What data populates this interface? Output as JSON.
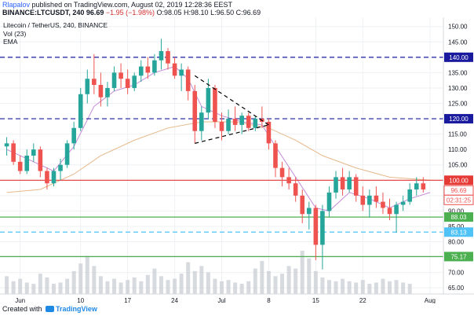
{
  "header": {
    "author": "Rlapalov",
    "published_text": "published on TradingView.com, August 02, 2019 12:28:36 EEST",
    "symbol": "BINANCE:LTCUSDT, 240",
    "price": "96.69",
    "change": "−1.95 (−1.98%)",
    "ohlc": {
      "o_label": "O:",
      "o": "98.05",
      "h_label": "H:",
      "h": "98.10",
      "l_label": "L:",
      "l": "96.50",
      "c_label": "C:",
      "c": "96.69"
    }
  },
  "footer": {
    "created_with": "Created with",
    "brand": "TradingView"
  },
  "chart_data": {
    "type": "candlestick",
    "title": "Litecoin / TetherUS, 240, BINANCE",
    "indicators": [
      "Vol (23)",
      "EMA"
    ],
    "y_ticks": [
      150,
      145,
      140,
      135,
      130,
      125,
      120,
      115,
      110,
      105,
      100,
      95,
      90,
      85,
      80,
      75,
      70,
      65
    ],
    "y_tick_labels": [
      "150.00",
      "145.00",
      "140.00",
      "135.00",
      "130.00",
      "125.00",
      "120.00",
      "115.00",
      "110.00",
      "105.00",
      "100.00",
      "95.00",
      "90.00",
      "85.00",
      "80.00",
      "75.00",
      "70.00",
      "65.00"
    ],
    "ylim": [
      63,
      153
    ],
    "x_ticks": [
      {
        "label": "Jun",
        "day": 0
      },
      {
        "label": "10",
        "day": 9
      },
      {
        "label": "17",
        "day": 16
      },
      {
        "label": "24",
        "day": 23
      },
      {
        "label": "Jul",
        "day": 30
      },
      {
        "label": "8",
        "day": 37
      },
      {
        "label": "15",
        "day": 44
      },
      {
        "label": "22",
        "day": 51
      },
      {
        "label": "Aug",
        "day": 61
      }
    ],
    "xlim": [
      -3,
      63
    ],
    "ohlc": [
      {
        "day": -2,
        "o": 111,
        "h": 114,
        "l": 108,
        "c": 112
      },
      {
        "day": -1,
        "o": 112,
        "h": 113,
        "l": 105,
        "c": 106
      },
      {
        "day": 0,
        "o": 106,
        "h": 108,
        "l": 102,
        "c": 103
      },
      {
        "day": 1,
        "o": 103,
        "h": 110,
        "l": 102,
        "c": 108
      },
      {
        "day": 2,
        "o": 108,
        "h": 112,
        "l": 106,
        "c": 110
      },
      {
        "day": 3,
        "o": 110,
        "h": 111,
        "l": 101,
        "c": 103
      },
      {
        "day": 4,
        "o": 103,
        "h": 104,
        "l": 97,
        "c": 99
      },
      {
        "day": 5,
        "o": 99,
        "h": 104,
        "l": 98,
        "c": 103
      },
      {
        "day": 6,
        "o": 103,
        "h": 107,
        "l": 100,
        "c": 105
      },
      {
        "day": 7,
        "o": 105,
        "h": 113,
        "l": 104,
        "c": 112
      },
      {
        "day": 8,
        "o": 112,
        "h": 119,
        "l": 110,
        "c": 117
      },
      {
        "day": 9,
        "o": 117,
        "h": 130,
        "l": 116,
        "c": 128
      },
      {
        "day": 10,
        "o": 128,
        "h": 136,
        "l": 125,
        "c": 133
      },
      {
        "day": 11,
        "o": 133,
        "h": 141,
        "l": 128,
        "c": 131
      },
      {
        "day": 12,
        "o": 131,
        "h": 135,
        "l": 124,
        "c": 127
      },
      {
        "day": 13,
        "o": 127,
        "h": 132,
        "l": 124,
        "c": 130
      },
      {
        "day": 14,
        "o": 130,
        "h": 137,
        "l": 129,
        "c": 135
      },
      {
        "day": 15,
        "o": 135,
        "h": 138,
        "l": 130,
        "c": 133
      },
      {
        "day": 16,
        "o": 133,
        "h": 136,
        "l": 128,
        "c": 130
      },
      {
        "day": 17,
        "o": 130,
        "h": 135,
        "l": 129,
        "c": 134
      },
      {
        "day": 18,
        "o": 134,
        "h": 139,
        "l": 132,
        "c": 137
      },
      {
        "day": 19,
        "o": 137,
        "h": 140,
        "l": 133,
        "c": 135
      },
      {
        "day": 20,
        "o": 135,
        "h": 141,
        "l": 134,
        "c": 139
      },
      {
        "day": 21,
        "o": 139,
        "h": 146,
        "l": 136,
        "c": 142
      },
      {
        "day": 22,
        "o": 142,
        "h": 143,
        "l": 136,
        "c": 138
      },
      {
        "day": 23,
        "o": 138,
        "h": 140,
        "l": 133,
        "c": 134
      },
      {
        "day": 24,
        "o": 134,
        "h": 138,
        "l": 129,
        "c": 136
      },
      {
        "day": 25,
        "o": 136,
        "h": 137,
        "l": 126,
        "c": 129
      },
      {
        "day": 26,
        "o": 129,
        "h": 131,
        "l": 112,
        "c": 116
      },
      {
        "day": 27,
        "o": 116,
        "h": 124,
        "l": 113,
        "c": 122
      },
      {
        "day": 28,
        "o": 122,
        "h": 133,
        "l": 120,
        "c": 130
      },
      {
        "day": 29,
        "o": 130,
        "h": 131,
        "l": 117,
        "c": 119
      },
      {
        "day": 30,
        "o": 119,
        "h": 122,
        "l": 113,
        "c": 116
      },
      {
        "day": 31,
        "o": 116,
        "h": 123,
        "l": 115,
        "c": 120
      },
      {
        "day": 32,
        "o": 120,
        "h": 124,
        "l": 116,
        "c": 118
      },
      {
        "day": 33,
        "o": 118,
        "h": 122,
        "l": 115,
        "c": 121
      },
      {
        "day": 34,
        "o": 121,
        "h": 122,
        "l": 116,
        "c": 117
      },
      {
        "day": 35,
        "o": 117,
        "h": 121,
        "l": 116,
        "c": 120
      },
      {
        "day": 36,
        "o": 120,
        "h": 124,
        "l": 117,
        "c": 119
      },
      {
        "day": 37,
        "o": 119,
        "h": 120,
        "l": 110,
        "c": 112
      },
      {
        "day": 38,
        "o": 112,
        "h": 113,
        "l": 101,
        "c": 104
      },
      {
        "day": 39,
        "o": 104,
        "h": 106,
        "l": 98,
        "c": 101
      },
      {
        "day": 40,
        "o": 101,
        "h": 104,
        "l": 97,
        "c": 99
      },
      {
        "day": 41,
        "o": 99,
        "h": 101,
        "l": 93,
        "c": 95
      },
      {
        "day": 42,
        "o": 95,
        "h": 97,
        "l": 86,
        "c": 89
      },
      {
        "day": 43,
        "o": 89,
        "h": 93,
        "l": 84,
        "c": 91
      },
      {
        "day": 44,
        "o": 91,
        "h": 92,
        "l": 74,
        "c": 79
      },
      {
        "day": 45,
        "o": 79,
        "h": 92,
        "l": 71,
        "c": 90
      },
      {
        "day": 46,
        "o": 90,
        "h": 98,
        "l": 88,
        "c": 96
      },
      {
        "day": 47,
        "o": 96,
        "h": 103,
        "l": 94,
        "c": 101
      },
      {
        "day": 48,
        "o": 101,
        "h": 104,
        "l": 95,
        "c": 97
      },
      {
        "day": 49,
        "o": 97,
        "h": 103,
        "l": 96,
        "c": 101
      },
      {
        "day": 50,
        "o": 101,
        "h": 102,
        "l": 93,
        "c": 95
      },
      {
        "day": 51,
        "o": 95,
        "h": 98,
        "l": 90,
        "c": 92
      },
      {
        "day": 52,
        "o": 92,
        "h": 97,
        "l": 88,
        "c": 95
      },
      {
        "day": 53,
        "o": 95,
        "h": 98,
        "l": 91,
        "c": 93
      },
      {
        "day": 54,
        "o": 93,
        "h": 96,
        "l": 89,
        "c": 91
      },
      {
        "day": 55,
        "o": 91,
        "h": 94,
        "l": 87,
        "c": 89
      },
      {
        "day": 56,
        "o": 89,
        "h": 93,
        "l": 83,
        "c": 92
      },
      {
        "day": 57,
        "o": 92,
        "h": 95,
        "l": 90,
        "c": 93
      },
      {
        "day": 58,
        "o": 93,
        "h": 99,
        "l": 92,
        "c": 97
      },
      {
        "day": 59,
        "o": 97,
        "h": 101,
        "l": 95,
        "c": 99
      },
      {
        "day": 60,
        "o": 99,
        "h": 101,
        "l": 96,
        "c": 97
      }
    ],
    "volume": [
      14,
      10,
      12,
      9,
      8,
      16,
      13,
      8,
      9,
      12,
      18,
      24,
      30,
      22,
      14,
      10,
      12,
      9,
      11,
      13,
      10,
      15,
      20,
      14,
      11,
      12,
      16,
      25,
      18,
      22,
      17,
      12,
      10,
      11,
      9,
      8,
      10,
      20,
      26,
      18,
      14,
      16,
      22,
      20,
      34,
      28,
      18,
      13,
      11,
      10,
      12,
      10,
      9,
      11,
      8,
      9,
      12,
      10,
      11,
      9,
      8
    ],
    "ema_fast_label": "EMA fast",
    "ema_fast": [
      {
        "day": -2,
        "v": 110
      },
      {
        "day": 2,
        "v": 106
      },
      {
        "day": 5,
        "v": 103
      },
      {
        "day": 8,
        "v": 111
      },
      {
        "day": 11,
        "v": 124
      },
      {
        "day": 14,
        "v": 129
      },
      {
        "day": 17,
        "v": 131
      },
      {
        "day": 20,
        "v": 135
      },
      {
        "day": 23,
        "v": 137
      },
      {
        "day": 25,
        "v": 133
      },
      {
        "day": 27,
        "v": 124
      },
      {
        "day": 30,
        "v": 121
      },
      {
        "day": 33,
        "v": 119
      },
      {
        "day": 36,
        "v": 118
      },
      {
        "day": 38,
        "v": 111
      },
      {
        "day": 41,
        "v": 101
      },
      {
        "day": 44,
        "v": 91
      },
      {
        "day": 46,
        "v": 90
      },
      {
        "day": 49,
        "v": 96
      },
      {
        "day": 52,
        "v": 94
      },
      {
        "day": 55,
        "v": 91
      },
      {
        "day": 58,
        "v": 94
      },
      {
        "day": 61,
        "v": 96
      }
    ],
    "ema_slow_label": "EMA slow",
    "ema_slow": [
      {
        "day": -2,
        "v": 96
      },
      {
        "day": 3,
        "v": 97
      },
      {
        "day": 8,
        "v": 102
      },
      {
        "day": 12,
        "v": 108
      },
      {
        "day": 17,
        "v": 113
      },
      {
        "day": 22,
        "v": 117
      },
      {
        "day": 27,
        "v": 119
      },
      {
        "day": 32,
        "v": 119
      },
      {
        "day": 37,
        "v": 117
      },
      {
        "day": 41,
        "v": 113
      },
      {
        "day": 45,
        "v": 108
      },
      {
        "day": 50,
        "v": 104
      },
      {
        "day": 55,
        "v": 101
      },
      {
        "day": 61,
        "v": 100
      }
    ],
    "hlines": [
      {
        "value": 140,
        "label": "140.00",
        "color": "#1a1a9e",
        "style": "dashed"
      },
      {
        "value": 120,
        "label": "120.00",
        "color": "#1a1a9e",
        "style": "dashed"
      },
      {
        "value": 100,
        "label": "100.00",
        "color": "#e53935",
        "style": "solid"
      },
      {
        "value": 88.03,
        "label": "88.03",
        "color": "#4caf50",
        "style": "solid"
      },
      {
        "value": 83.13,
        "label": "83.13",
        "color": "#4fc3f7",
        "style": "dashed"
      },
      {
        "value": 75.17,
        "label": "75.17",
        "color": "#4caf50",
        "style": "solid"
      }
    ],
    "price_labels": [
      {
        "value": 96.69,
        "text": "96.69",
        "color": "#ef5350"
      },
      {
        "value": 93.6,
        "text": "02:31:25",
        "color": "#ef5350"
      }
    ],
    "triangle": {
      "upper": [
        {
          "day": 26,
          "v": 134
        },
        {
          "day": 37,
          "v": 118
        }
      ],
      "lower": [
        {
          "day": 26,
          "v": 112
        },
        {
          "day": 37,
          "v": 118
        }
      ]
    },
    "colors": {
      "up": "#26a69a",
      "down": "#ef5350",
      "volume": "#c9ced4",
      "grid": "#eef0f3"
    }
  }
}
